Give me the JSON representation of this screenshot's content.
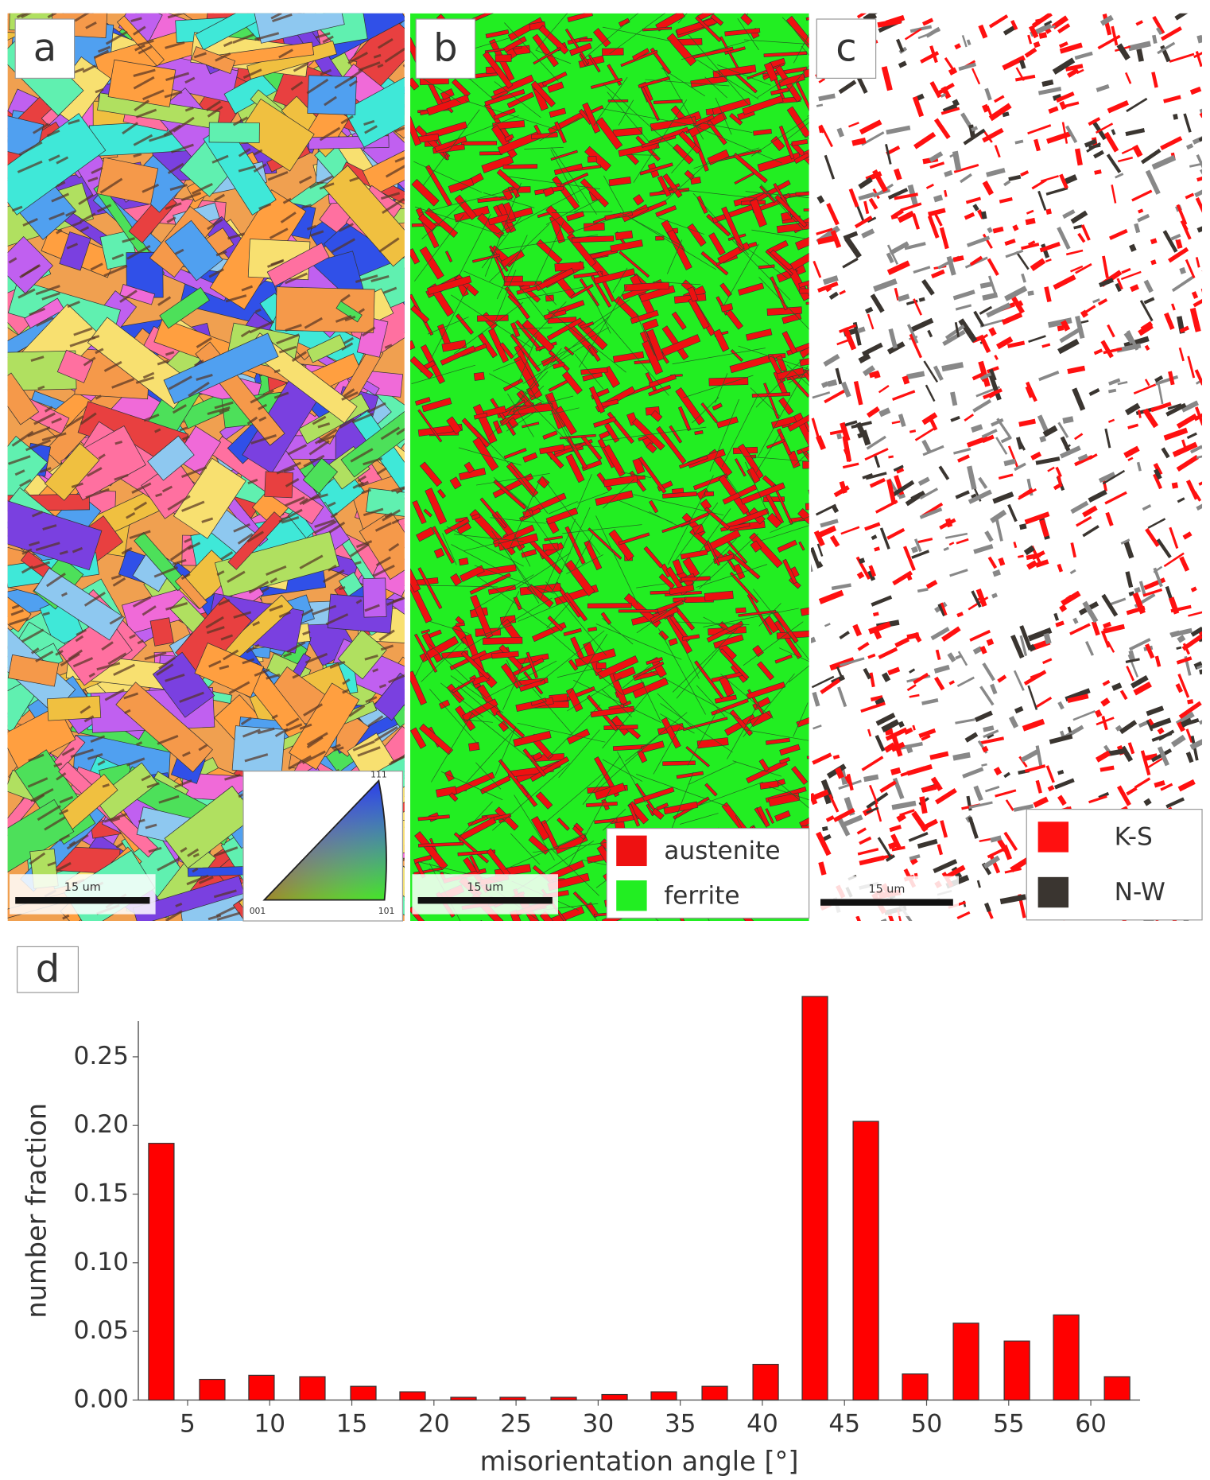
{
  "panels": {
    "a": {
      "label": "a",
      "scale_bar": "15 um",
      "ipf_corners": [
        "111",
        "001",
        "101"
      ]
    },
    "b": {
      "label": "b",
      "scale_bar": "15 um",
      "legend": [
        {
          "name": "austenite",
          "color": "#ee1111"
        },
        {
          "name": "ferrite",
          "color": "#22ee22"
        }
      ]
    },
    "c": {
      "label": "c",
      "scale_bar": "15 um",
      "legend": [
        {
          "name": "K-S",
          "color": "#ff1010"
        },
        {
          "name": "N-W",
          "color": "#3a3530"
        }
      ]
    },
    "d": {
      "label": "d"
    }
  },
  "chart_data": {
    "type": "bar",
    "xlabel": "misorientation angle [°]",
    "ylabel": "number fraction",
    "color": "#ff0000",
    "x": [
      3.4,
      6.5,
      9.5,
      12.6,
      15.7,
      18.7,
      21.8,
      24.8,
      27.9,
      31.0,
      34.0,
      37.1,
      40.2,
      43.2,
      46.3,
      49.3,
      52.4,
      55.5,
      58.5,
      61.6
    ],
    "values": [
      0.187,
      0.015,
      0.018,
      0.017,
      0.01,
      0.006,
      0.002,
      0.002,
      0.002,
      0.004,
      0.006,
      0.01,
      0.026,
      0.294,
      0.203,
      0.019,
      0.056,
      0.043,
      0.062,
      0.017
    ],
    "xlim": [
      2,
      63
    ],
    "ylim": [
      0,
      0.276
    ],
    "xticks": [
      5,
      10,
      15,
      20,
      25,
      30,
      35,
      40,
      45,
      50,
      55,
      60
    ],
    "yticks": [
      {
        "value": 0,
        "label": "0.00"
      },
      {
        "value": 0.05,
        "label": "0.05"
      },
      {
        "value": 0.1,
        "label": "0.10"
      },
      {
        "value": 0.15,
        "label": "0.15"
      },
      {
        "value": 0.2,
        "label": "0.20"
      },
      {
        "value": 0.25,
        "label": "0.25"
      }
    ]
  }
}
